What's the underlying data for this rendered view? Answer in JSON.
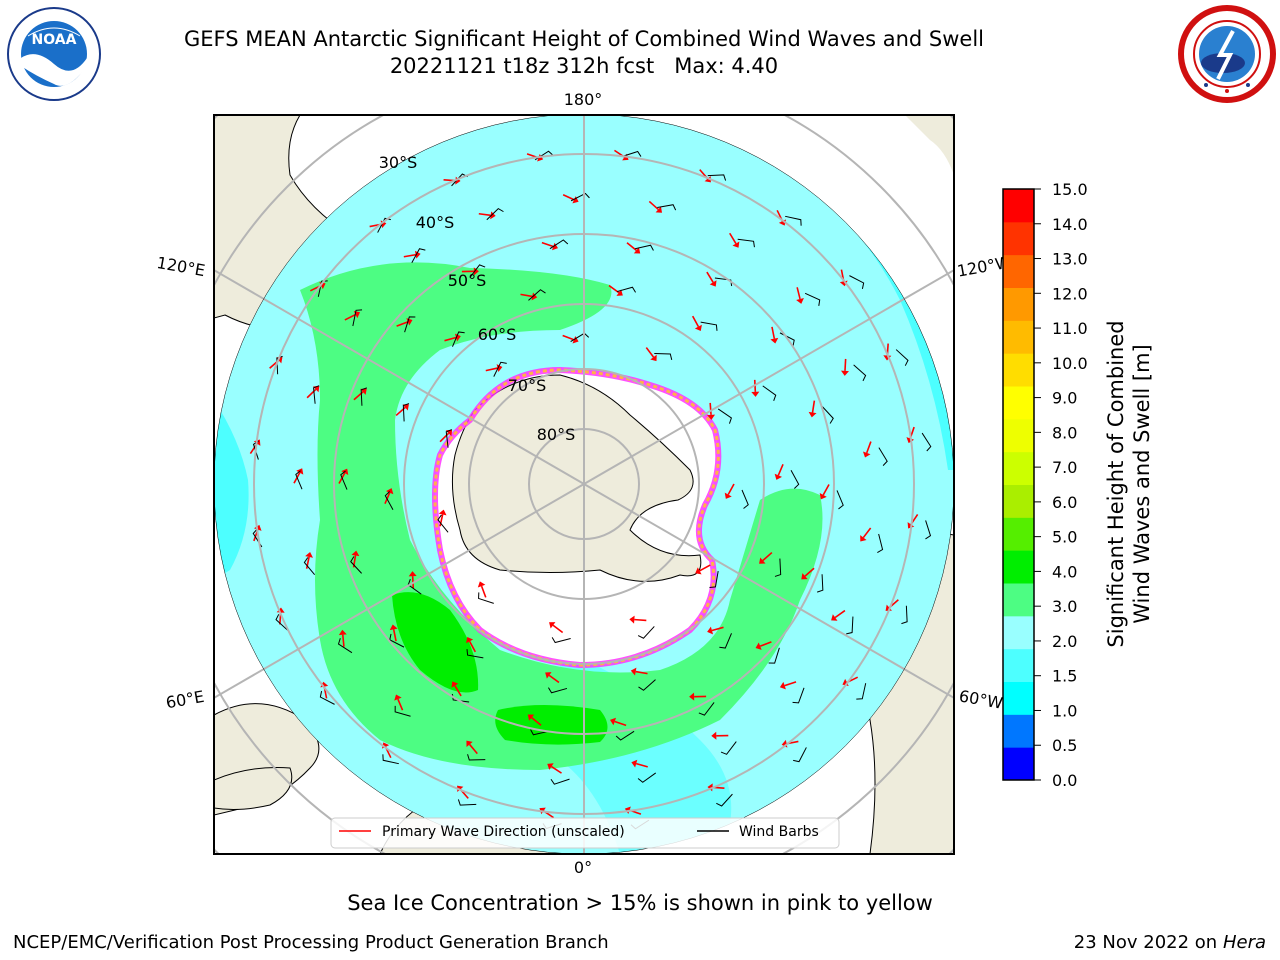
{
  "title_line1": "GEFS MEAN Antarctic Significant Height of Combined Wind Waves and Swell",
  "title_line2": "20221121 t18z 312h fcst   Max: 4.40",
  "logos": {
    "left": {
      "name": "NOAA",
      "ring_text": "NATIONAL OCEANIC AND ATMOSPHERIC ADMINISTRATION · U.S. DEPARTMENT OF COMMERCE",
      "center_text": "NOAA"
    },
    "right": {
      "name": "National Weather Service",
      "ring_text": "NATIONAL WEATHER SERVICE"
    }
  },
  "map": {
    "projection": "South Polar Stereographic",
    "longitude_labels": {
      "top": "180°",
      "bottom": "0°",
      "upper_left": "120°E",
      "upper_right": "120°W",
      "lower_left": "60°E",
      "lower_right": "60°W"
    },
    "latitude_labels": [
      "30°S",
      "40°S",
      "50°S",
      "60°S",
      "70°S",
      "80°S"
    ],
    "colors": {
      "land": "#eeecdc",
      "ocean_low": "#99ffff",
      "ocean_mid": "#4dffff",
      "band_3_4": "#4dfd83",
      "band_4_5": "#00ee00",
      "ice_white": "#ffffff",
      "ice_pink": "#ff33ff",
      "ice_orange": "#ffb347",
      "arrow": "#ff0000",
      "barb": "#000000",
      "grid": "#b5b5b5"
    },
    "legend": {
      "arrow_label": "Primary Wave Direction (unscaled)",
      "barb_label": "Wind Barbs"
    }
  },
  "colorbar": {
    "label_line1": "Significant Height of Combined",
    "label_line2": "Wind Waves and Swell [m]",
    "ticks": [
      "15.0",
      "14.0",
      "13.0",
      "12.0",
      "11.0",
      "10.0",
      "9.0",
      "8.0",
      "7.0",
      "6.0",
      "5.0",
      "4.0",
      "3.0",
      "2.0",
      "1.5",
      "1.0",
      "0.5",
      "0.0"
    ],
    "colors_bottom_to_top": [
      "#0000ff",
      "#0077ff",
      "#00ffff",
      "#4dffff",
      "#99ffff",
      "#4dfd83",
      "#00ee00",
      "#55ee00",
      "#aaee00",
      "#ccff00",
      "#eeff00",
      "#ffff00",
      "#ffdd00",
      "#ffbb00",
      "#ff9900",
      "#ff6600",
      "#ff3300",
      "#ff0000"
    ]
  },
  "note": "Sea Ice Concentration > 15% is shown in pink to yellow",
  "footer_left": "NCEP/EMC/Verification Post Processing Product Generation Branch",
  "footer_right": {
    "date": "23 Nov 2022 on",
    "host": "Hera"
  }
}
